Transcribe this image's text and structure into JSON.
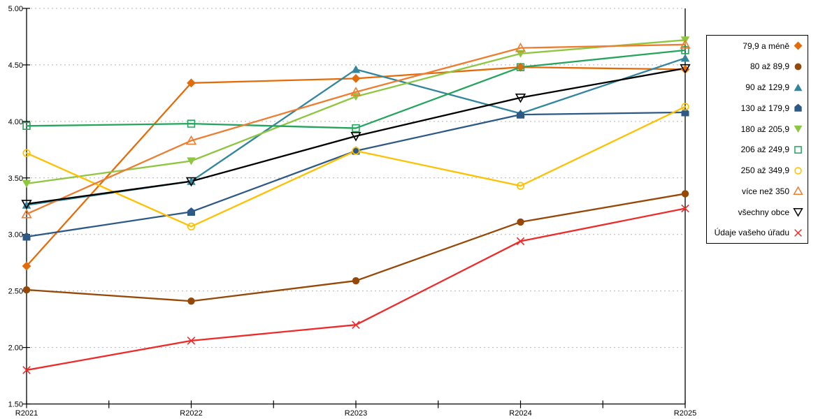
{
  "chart_data": {
    "type": "line",
    "title": "",
    "categories": [
      "R2021",
      "R2022",
      "R2023",
      "R2024",
      "R2025"
    ],
    "ylim": [
      1.5,
      5.0
    ],
    "y_tick_values": [
      5.0,
      4.5,
      4.0,
      3.5,
      3.0,
      2.5,
      2.0,
      1.5
    ],
    "y_tick_labels": [
      "5.00",
      "4.50",
      "4.00",
      "3.50",
      "3.00",
      "2.50",
      "2.00",
      "1.50"
    ],
    "grid": "horizontal dashed gridlines at every 0.50",
    "legend_position": "right",
    "series": [
      {
        "name": "79,9 a méně",
        "marker": "diamond",
        "style": "filled",
        "color": "#E36C0A",
        "values": [
          2.72,
          4.34,
          4.38,
          4.48,
          4.46
        ]
      },
      {
        "name": "80 až 89,9",
        "marker": "circle",
        "style": "filled",
        "color": "#974807",
        "values": [
          2.51,
          2.41,
          2.59,
          3.11,
          3.36
        ]
      },
      {
        "name": "90 až 129,9",
        "marker": "triangle-up",
        "style": "filled",
        "color": "#31859C",
        "values": [
          3.26,
          3.47,
          4.46,
          4.07,
          4.56
        ]
      },
      {
        "name": "130 až 179,9",
        "marker": "pentagon",
        "style": "filled",
        "color": "#2D5986",
        "values": [
          2.98,
          3.2,
          3.74,
          4.06,
          4.08
        ]
      },
      {
        "name": "180 až 205,9",
        "marker": "triangle-down",
        "style": "filled",
        "color": "#8EC63F",
        "values": [
          3.45,
          3.65,
          4.22,
          4.6,
          4.72
        ]
      },
      {
        "name": "206 až 249,9",
        "marker": "square",
        "style": "open",
        "color": "#24A45C",
        "values": [
          3.96,
          3.98,
          3.94,
          4.48,
          4.63
        ]
      },
      {
        "name": "250 až 349,9",
        "marker": "circle",
        "style": "open",
        "color": "#FFC000",
        "values": [
          3.72,
          3.07,
          3.74,
          3.43,
          4.13
        ]
      },
      {
        "name": "více než 350",
        "marker": "triangle-up",
        "style": "open",
        "color": "#ED7D31",
        "values": [
          3.18,
          3.83,
          4.26,
          4.65,
          4.68
        ]
      },
      {
        "name": "všechny obce",
        "marker": "triangle-down",
        "style": "open",
        "color": "#000000",
        "values": [
          3.27,
          3.47,
          3.87,
          4.21,
          4.47
        ]
      },
      {
        "name": "Údaje vašeho úřadu",
        "marker": "x",
        "style": "open",
        "color": "#EE2B2B",
        "values": [
          1.8,
          2.06,
          2.2,
          2.94,
          3.23
        ]
      }
    ]
  },
  "colors": {
    "background": "#FFFFFF",
    "axis": "#000000",
    "grid": "#B3B3B3",
    "text": "#000000"
  }
}
